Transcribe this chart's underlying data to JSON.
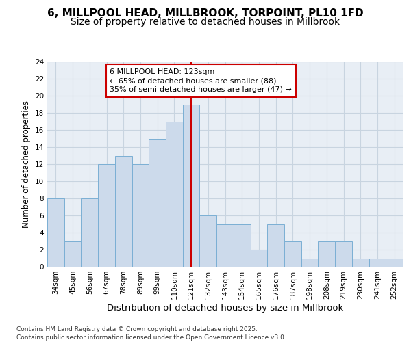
{
  "title1": "6, MILLPOOL HEAD, MILLBROOK, TORPOINT, PL10 1FD",
  "title2": "Size of property relative to detached houses in Millbrook",
  "xlabel": "Distribution of detached houses by size in Millbrook",
  "ylabel": "Number of detached properties",
  "categories": [
    "34sqm",
    "45sqm",
    "56sqm",
    "67sqm",
    "78sqm",
    "89sqm",
    "99sqm",
    "110sqm",
    "121sqm",
    "132sqm",
    "143sqm",
    "154sqm",
    "165sqm",
    "176sqm",
    "187sqm",
    "198sqm",
    "208sqm",
    "219sqm",
    "230sqm",
    "241sqm",
    "252sqm"
  ],
  "values": [
    8,
    3,
    8,
    12,
    13,
    12,
    15,
    17,
    19,
    6,
    5,
    5,
    2,
    5,
    3,
    1,
    3,
    3,
    1,
    1,
    1
  ],
  "bar_color": "#ccdaeb",
  "bar_edge_color": "#7bafd4",
  "vline_x_index": 8,
  "vline_color": "#cc0000",
  "annotation_text": "6 MILLPOOL HEAD: 123sqm\n← 65% of detached houses are smaller (88)\n35% of semi-detached houses are larger (47) →",
  "annotation_box_facecolor": "#ffffff",
  "annotation_box_edgecolor": "#cc0000",
  "ylim": [
    0,
    24
  ],
  "yticks": [
    0,
    2,
    4,
    6,
    8,
    10,
    12,
    14,
    16,
    18,
    20,
    22,
    24
  ],
  "grid_color": "#c8d4e0",
  "bg_color": "#e8eef5",
  "footer": "Contains HM Land Registry data © Crown copyright and database right 2025.\nContains public sector information licensed under the Open Government Licence v3.0.",
  "title1_fontsize": 11,
  "title2_fontsize": 10,
  "xlabel_fontsize": 9.5,
  "ylabel_fontsize": 8.5,
  "tick_fontsize": 7.5,
  "annotation_fontsize": 8,
  "footer_fontsize": 6.5
}
